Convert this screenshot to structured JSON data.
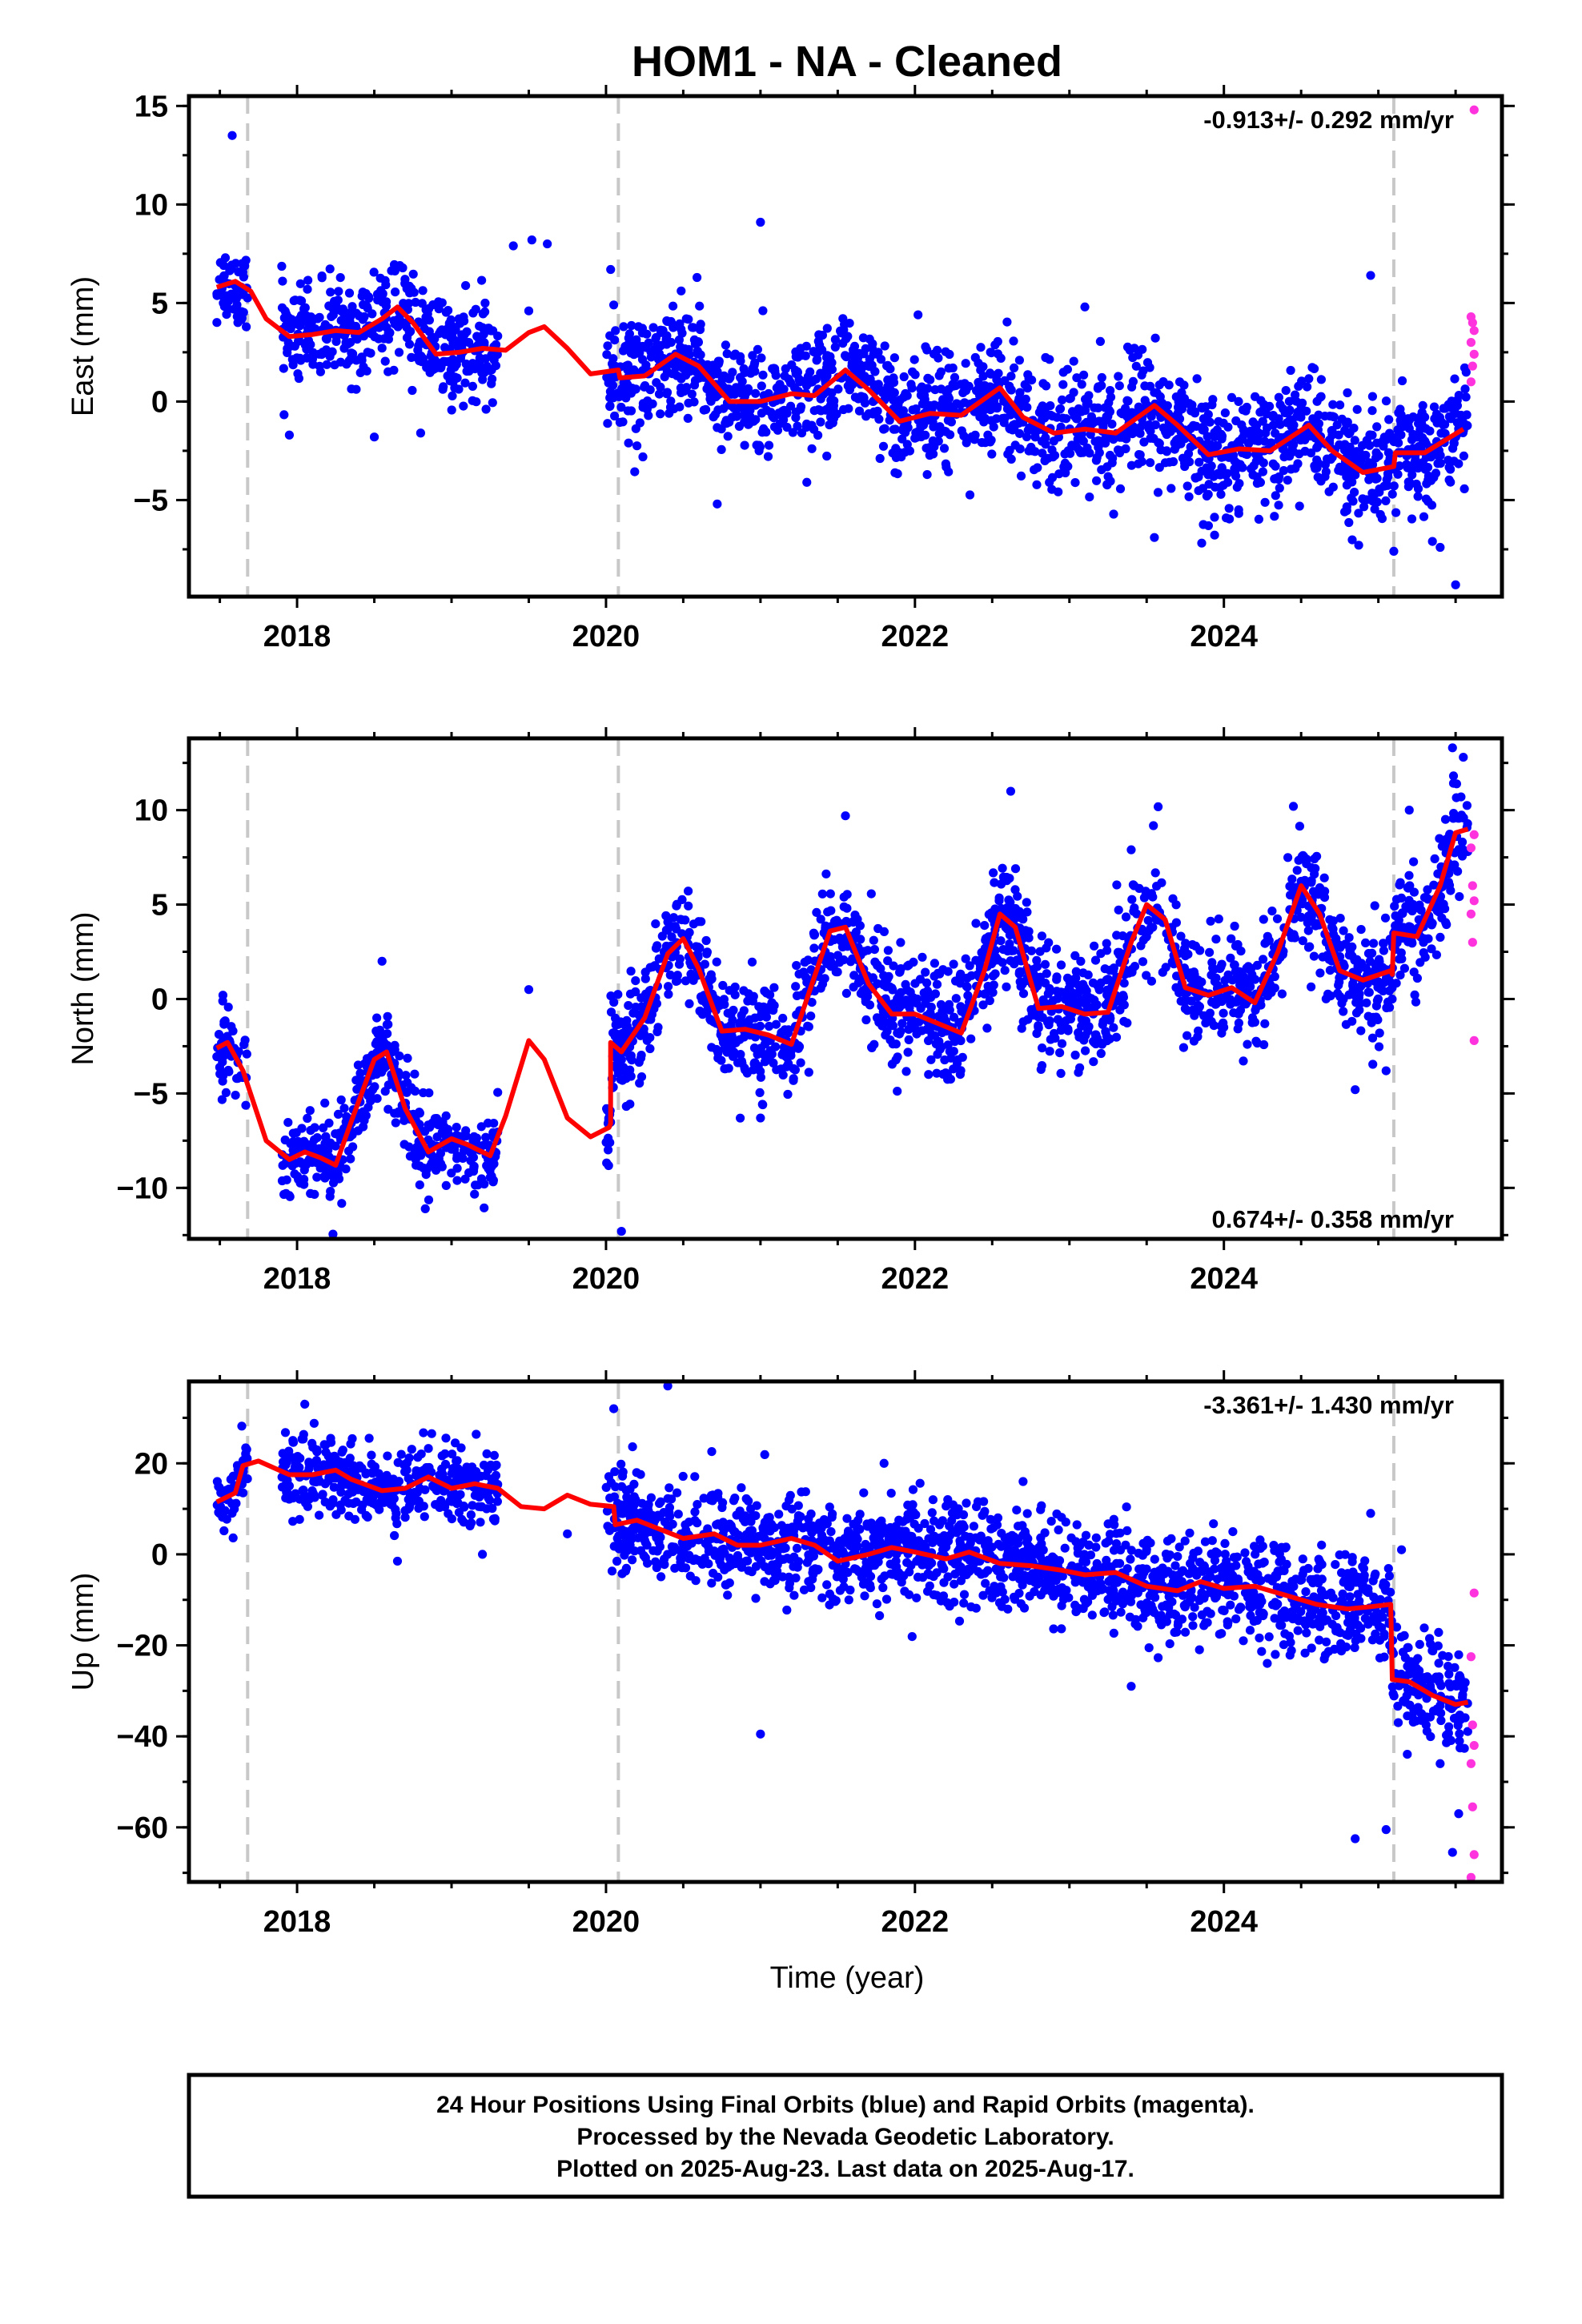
{
  "title": "HOM1  - NA - Cleaned",
  "xlabel": "Time (year)",
  "footer": {
    "line1": "24 Hour Positions Using Final Orbits (blue) and Rapid Orbits (magenta).",
    "line2": "Processed by the Nevada Geodetic Laboratory.",
    "line3": "Plotted on 2025-Aug-23. Last data on 2025-Aug-17."
  },
  "colors": {
    "final_orbits": "#0000ff",
    "rapid_orbits": "#ff33dd",
    "model": "#ff0000",
    "break_lines": "#c8c8c8"
  },
  "chart_data": [
    {
      "type": "scatter",
      "ylabel": "East (mm)",
      "rate_label": "-0.913+/- 0.292 mm/yr",
      "rate_position": "top-right",
      "xlim": [
        2017.3,
        2025.8
      ],
      "ylim": [
        -9.9,
        15.5
      ],
      "xticks": [
        2018,
        2020,
        2022,
        2024
      ],
      "xtick_labels": [
        "2018",
        "2020",
        "2022",
        "2024"
      ],
      "yticks": [
        -5,
        0,
        5,
        10,
        15
      ],
      "ytick_labels": [
        "−5",
        "0",
        "5",
        "10",
        "15"
      ],
      "breaks": [
        2017.68,
        2020.08,
        2025.1
      ],
      "model": [
        [
          2017.48,
          5.8
        ],
        [
          2017.6,
          6.1
        ],
        [
          2017.7,
          5.6
        ],
        [
          2017.8,
          4.2
        ],
        [
          2017.95,
          3.3
        ],
        [
          2018.1,
          3.4
        ],
        [
          2018.25,
          3.6
        ],
        [
          2018.4,
          3.5
        ],
        [
          2018.55,
          4.2
        ],
        [
          2018.65,
          4.8
        ],
        [
          2018.75,
          4.0
        ],
        [
          2018.9,
          2.4
        ],
        [
          2019.05,
          2.5
        ],
        [
          2019.2,
          2.7
        ],
        [
          2019.35,
          2.6
        ],
        [
          2019.5,
          3.5
        ],
        [
          2019.6,
          3.8
        ],
        [
          2019.75,
          2.7
        ],
        [
          2019.9,
          1.4
        ],
        [
          2020.08,
          1.6
        ],
        [
          2020.09,
          1.2
        ],
        [
          2020.25,
          1.3
        ],
        [
          2020.45,
          2.4
        ],
        [
          2020.6,
          1.8
        ],
        [
          2020.8,
          0.0
        ],
        [
          2021.0,
          0.0
        ],
        [
          2021.2,
          0.4
        ],
        [
          2021.35,
          0.3
        ],
        [
          2021.55,
          1.6
        ],
        [
          2021.7,
          0.6
        ],
        [
          2021.9,
          -1.0
        ],
        [
          2022.1,
          -0.6
        ],
        [
          2022.3,
          -0.7
        ],
        [
          2022.55,
          0.7
        ],
        [
          2022.7,
          -0.8
        ],
        [
          2022.9,
          -1.6
        ],
        [
          2023.1,
          -1.4
        ],
        [
          2023.3,
          -1.6
        ],
        [
          2023.55,
          -0.2
        ],
        [
          2023.7,
          -1.2
        ],
        [
          2023.9,
          -2.7
        ],
        [
          2024.1,
          -2.4
        ],
        [
          2024.3,
          -2.5
        ],
        [
          2024.55,
          -1.2
        ],
        [
          2024.7,
          -2.5
        ],
        [
          2024.9,
          -3.6
        ],
        [
          2025.1,
          -3.3
        ],
        [
          2025.11,
          -2.6
        ],
        [
          2025.3,
          -2.6
        ],
        [
          2025.55,
          -1.4
        ]
      ],
      "dense_segments": [
        {
          "x": [
            2017.48,
            2017.68
          ],
          "n": 50,
          "spread": 1.1
        },
        {
          "x": [
            2017.9,
            2019.3
          ],
          "n": 420,
          "spread": 1.2
        },
        {
          "x": [
            2020.0,
            2025.58
          ],
          "n": 1750,
          "spread": 1.45
        }
      ],
      "sparse_points": [
        [
          2017.58,
          13.5
        ],
        [
          2017.95,
          -1.7
        ],
        [
          2018.5,
          -1.8
        ],
        [
          2018.8,
          -1.6
        ],
        [
          2019.4,
          7.9
        ],
        [
          2019.52,
          8.2
        ],
        [
          2019.62,
          8.0
        ],
        [
          2019.5,
          4.6
        ],
        [
          2020.03,
          6.7
        ],
        [
          2020.05,
          4.9
        ],
        [
          2021.0,
          9.1
        ],
        [
          2020.72,
          -5.2
        ],
        [
          2021.3,
          -4.1
        ],
        [
          2022.02,
          4.4
        ],
        [
          2023.1,
          4.8
        ],
        [
          2023.55,
          -6.9
        ],
        [
          2023.9,
          -6.3
        ],
        [
          2024.95,
          6.4
        ],
        [
          2025.1,
          -7.6
        ],
        [
          2025.35,
          -7.1
        ],
        [
          2025.5,
          -9.3
        ],
        [
          2025.4,
          -7.4
        ]
      ],
      "rapid_points": [
        [
          2025.62,
          14.8
        ],
        [
          2025.6,
          4.3
        ],
        [
          2025.61,
          4.0
        ],
        [
          2025.62,
          3.6
        ],
        [
          2025.6,
          3.0
        ],
        [
          2025.62,
          2.4
        ],
        [
          2025.61,
          1.8
        ],
        [
          2025.6,
          1.0
        ]
      ]
    },
    {
      "type": "scatter",
      "ylabel": "North (mm)",
      "rate_label": "0.674+/- 0.358 mm/yr",
      "rate_position": "bottom-right",
      "xlim": [
        2017.3,
        2025.8
      ],
      "ylim": [
        -12.7,
        13.8
      ],
      "xticks": [
        2018,
        2020,
        2022,
        2024
      ],
      "xtick_labels": [
        "2018",
        "2020",
        "2022",
        "2024"
      ],
      "yticks": [
        -10,
        -5,
        0,
        5,
        10
      ],
      "ytick_labels": [
        "−10",
        "−5",
        "0",
        "5",
        "10"
      ],
      "breaks": [
        2017.68,
        2020.08,
        2025.1
      ],
      "model": [
        [
          2017.48,
          -2.6
        ],
        [
          2017.55,
          -2.3
        ],
        [
          2017.65,
          -3.8
        ],
        [
          2017.8,
          -7.5
        ],
        [
          2017.95,
          -8.5
        ],
        [
          2018.05,
          -8.1
        ],
        [
          2018.15,
          -8.4
        ],
        [
          2018.25,
          -8.8
        ],
        [
          2018.35,
          -6.5
        ],
        [
          2018.5,
          -3.2
        ],
        [
          2018.58,
          -2.8
        ],
        [
          2018.7,
          -5.8
        ],
        [
          2018.85,
          -8.1
        ],
        [
          2019.0,
          -7.4
        ],
        [
          2019.1,
          -7.7
        ],
        [
          2019.25,
          -8.3
        ],
        [
          2019.35,
          -6.2
        ],
        [
          2019.5,
          -2.2
        ],
        [
          2019.6,
          -3.2
        ],
        [
          2019.75,
          -6.3
        ],
        [
          2019.9,
          -7.3
        ],
        [
          2020.02,
          -6.8
        ],
        [
          2020.03,
          -6.6
        ],
        [
          2020.03,
          -2.3
        ],
        [
          2020.1,
          -2.8
        ],
        [
          2020.25,
          -1.0
        ],
        [
          2020.4,
          2.4
        ],
        [
          2020.5,
          3.2
        ],
        [
          2020.6,
          1.6
        ],
        [
          2020.75,
          -1.7
        ],
        [
          2020.9,
          -1.6
        ],
        [
          2021.05,
          -1.9
        ],
        [
          2021.2,
          -2.4
        ],
        [
          2021.3,
          0.0
        ],
        [
          2021.45,
          3.6
        ],
        [
          2021.55,
          3.8
        ],
        [
          2021.7,
          0.8
        ],
        [
          2021.85,
          -0.8
        ],
        [
          2022.0,
          -0.8
        ],
        [
          2022.15,
          -1.3
        ],
        [
          2022.3,
          -1.8
        ],
        [
          2022.45,
          1.5
        ],
        [
          2022.55,
          4.5
        ],
        [
          2022.65,
          3.8
        ],
        [
          2022.8,
          -0.5
        ],
        [
          2022.95,
          -0.4
        ],
        [
          2023.1,
          -0.8
        ],
        [
          2023.25,
          -0.7
        ],
        [
          2023.4,
          3.0
        ],
        [
          2023.5,
          5.0
        ],
        [
          2023.62,
          4.2
        ],
        [
          2023.75,
          0.6
        ],
        [
          2023.9,
          0.2
        ],
        [
          2024.05,
          0.6
        ],
        [
          2024.2,
          -0.2
        ],
        [
          2024.35,
          2.5
        ],
        [
          2024.5,
          6.0
        ],
        [
          2024.62,
          4.5
        ],
        [
          2024.75,
          1.5
        ],
        [
          2024.9,
          1.0
        ],
        [
          2025.08,
          1.5
        ],
        [
          2025.09,
          1.3
        ],
        [
          2025.1,
          3.5
        ],
        [
          2025.25,
          3.3
        ],
        [
          2025.4,
          6.0
        ],
        [
          2025.5,
          8.8
        ],
        [
          2025.58,
          9.0
        ]
      ],
      "dense_segments": [
        {
          "x": [
            2017.48,
            2017.68
          ],
          "n": 50,
          "spread": 1.1
        },
        {
          "x": [
            2017.9,
            2019.3
          ],
          "n": 420,
          "spread": 1.1
        },
        {
          "x": [
            2020.0,
            2025.58
          ],
          "n": 1750,
          "spread": 1.5
        }
      ],
      "sparse_points": [
        [
          2017.52,
          0.2
        ],
        [
          2018.55,
          2.0
        ],
        [
          2019.5,
          0.5
        ],
        [
          2020.1,
          -12.3
        ],
        [
          2020.6,
          4.1
        ],
        [
          2021.0,
          -6.3
        ],
        [
          2021.55,
          9.7
        ],
        [
          2022.62,
          11.0
        ],
        [
          2023.4,
          7.9
        ],
        [
          2024.45,
          10.2
        ],
        [
          2024.85,
          -4.8
        ],
        [
          2025.05,
          -3.8
        ],
        [
          2025.2,
          10.0
        ],
        [
          2025.48,
          13.3
        ],
        [
          2025.55,
          12.8
        ]
      ],
      "rapid_points": [
        [
          2025.62,
          8.7
        ],
        [
          2025.6,
          8.0
        ],
        [
          2025.61,
          6.0
        ],
        [
          2025.62,
          5.2
        ],
        [
          2025.6,
          4.5
        ],
        [
          2025.61,
          3.0
        ],
        [
          2025.62,
          -2.2
        ]
      ]
    },
    {
      "type": "scatter",
      "ylabel": "Up (mm)",
      "rate_label": "-3.361+/- 1.430 mm/yr",
      "rate_position": "top-right",
      "xlim": [
        2017.3,
        2025.8
      ],
      "ylim": [
        -72,
        38
      ],
      "xticks": [
        2018,
        2020,
        2022,
        2024
      ],
      "xtick_labels": [
        "2018",
        "2020",
        "2022",
        "2024"
      ],
      "yticks": [
        -60,
        -40,
        -20,
        0,
        20
      ],
      "ytick_labels": [
        "−60",
        "−40",
        "−20",
        "0",
        "20"
      ],
      "breaks": [
        2017.68,
        2020.08,
        2025.1
      ],
      "model": [
        [
          2017.48,
          11.5
        ],
        [
          2017.6,
          13.5
        ],
        [
          2017.65,
          19.5
        ],
        [
          2017.75,
          20.5
        ],
        [
          2017.95,
          17.5
        ],
        [
          2018.1,
          17.5
        ],
        [
          2018.25,
          18.5
        ],
        [
          2018.35,
          16.5
        ],
        [
          2018.55,
          14.0
        ],
        [
          2018.7,
          14.5
        ],
        [
          2018.85,
          17.0
        ],
        [
          2019.0,
          14.5
        ],
        [
          2019.15,
          15.5
        ],
        [
          2019.3,
          14.5
        ],
        [
          2019.45,
          10.5
        ],
        [
          2019.6,
          10.0
        ],
        [
          2019.75,
          13.0
        ],
        [
          2019.9,
          11.0
        ],
        [
          2020.05,
          10.5
        ],
        [
          2020.06,
          6.5
        ],
        [
          2020.2,
          7.5
        ],
        [
          2020.35,
          5.5
        ],
        [
          2020.5,
          3.5
        ],
        [
          2020.7,
          4.5
        ],
        [
          2020.85,
          2.0
        ],
        [
          2021.0,
          2.0
        ],
        [
          2021.2,
          3.5
        ],
        [
          2021.35,
          2.0
        ],
        [
          2021.5,
          -1.5
        ],
        [
          2021.7,
          0.0
        ],
        [
          2021.85,
          1.5
        ],
        [
          2022.0,
          0.5
        ],
        [
          2022.2,
          -1.0
        ],
        [
          2022.35,
          0.5
        ],
        [
          2022.55,
          -2.0
        ],
        [
          2022.75,
          -2.5
        ],
        [
          2022.95,
          -3.5
        ],
        [
          2023.1,
          -4.5
        ],
        [
          2023.3,
          -4.0
        ],
        [
          2023.5,
          -7.0
        ],
        [
          2023.7,
          -8.0
        ],
        [
          2023.85,
          -6.0
        ],
        [
          2024.0,
          -7.5
        ],
        [
          2024.2,
          -7.0
        ],
        [
          2024.4,
          -9.0
        ],
        [
          2024.6,
          -11.0
        ],
        [
          2024.8,
          -12.0
        ],
        [
          2024.95,
          -11.5
        ],
        [
          2025.08,
          -11.0
        ],
        [
          2025.09,
          -27.5
        ],
        [
          2025.2,
          -28.0
        ],
        [
          2025.35,
          -31.0
        ],
        [
          2025.5,
          -33.0
        ],
        [
          2025.58,
          -32.5
        ]
      ],
      "dense_segments": [
        {
          "x": [
            2017.48,
            2017.68
          ],
          "n": 50,
          "spread": 3.5
        },
        {
          "x": [
            2017.9,
            2019.3
          ],
          "n": 420,
          "spread": 4.0
        },
        {
          "x": [
            2020.0,
            2025.58
          ],
          "n": 1750,
          "spread": 5.5
        }
      ],
      "sparse_points": [
        [
          2018.05,
          33.0
        ],
        [
          2018.65,
          -1.5
        ],
        [
          2019.2,
          0.0
        ],
        [
          2019.75,
          4.5
        ],
        [
          2020.05,
          32.0
        ],
        [
          2020.4,
          37.0
        ],
        [
          2021.0,
          -39.5
        ],
        [
          2021.8,
          20.0
        ],
        [
          2022.7,
          16.0
        ],
        [
          2023.4,
          -29.0
        ],
        [
          2024.65,
          -23.0
        ],
        [
          2024.85,
          -62.5
        ],
        [
          2024.95,
          9.0
        ],
        [
          2025.05,
          -60.5
        ],
        [
          2025.15,
          1.0
        ],
        [
          2025.4,
          -46.0
        ],
        [
          2025.48,
          -65.5
        ],
        [
          2025.52,
          -57.0
        ]
      ],
      "rapid_points": [
        [
          2025.62,
          -8.5
        ],
        [
          2025.6,
          -22.5
        ],
        [
          2025.61,
          -37.5
        ],
        [
          2025.62,
          -42.0
        ],
        [
          2025.6,
          -46.0
        ],
        [
          2025.61,
          -55.5
        ],
        [
          2025.62,
          -66.0
        ],
        [
          2025.6,
          -71.0
        ]
      ]
    }
  ]
}
